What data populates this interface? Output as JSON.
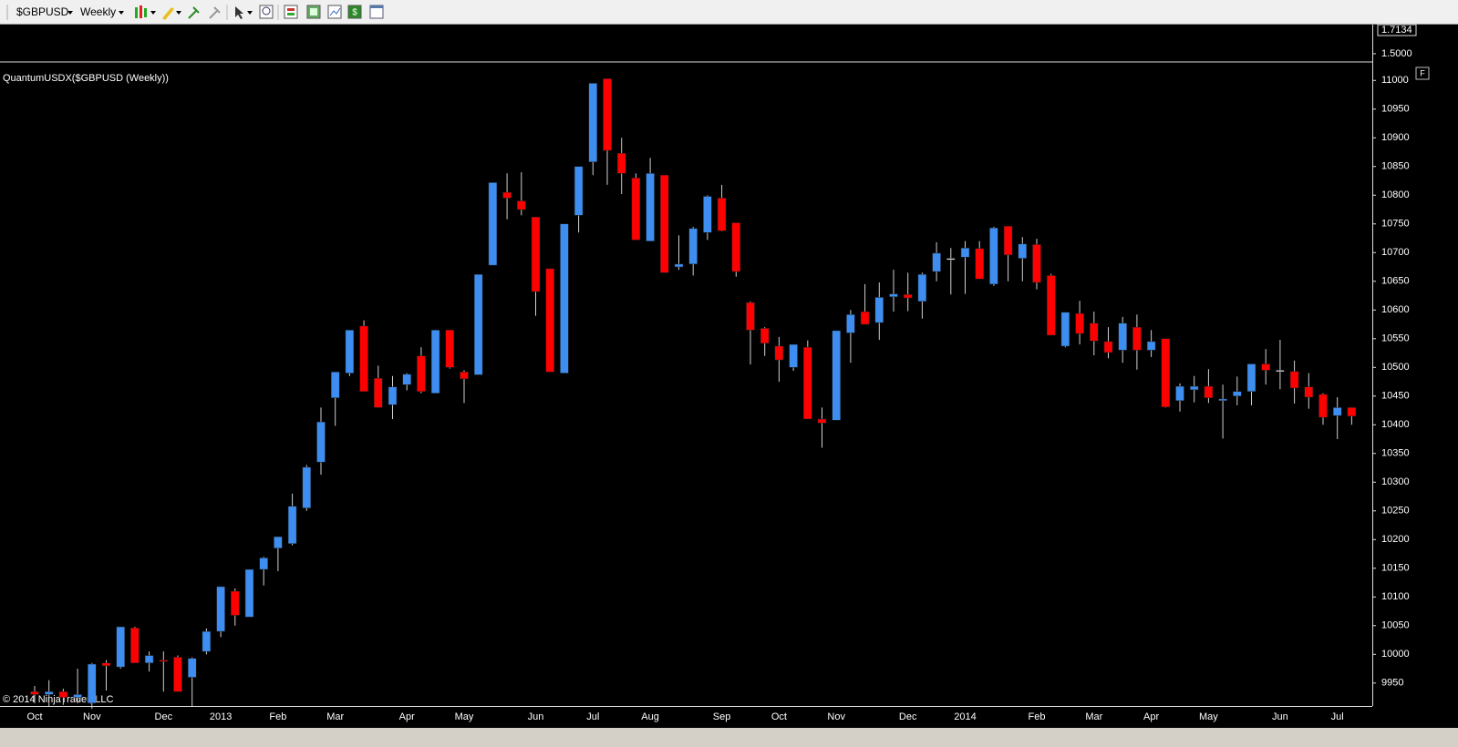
{
  "toolbar": {
    "instrument": "$GBPUSD",
    "interval": "Weekly"
  },
  "upper_pane": {
    "ylim": [
      1.434,
      1.763
    ],
    "yticks": [
      {
        "value": 1.5,
        "label": "1.5000"
      }
    ],
    "last_price": {
      "value": 1.7134,
      "label": "1.7134"
    },
    "button": "F"
  },
  "copyright": "© 2014 NinjaTrader, LLC",
  "chart_data": {
    "type": "candlestick",
    "title": "QuantumUSDX($GBPUSD (Weekly))",
    "categories": [
      "Oct",
      null,
      null,
      null,
      "Nov",
      null,
      null,
      null,
      null,
      "Dec",
      null,
      null,
      null,
      "2013",
      null,
      null,
      null,
      "Feb",
      null,
      null,
      null,
      "Mar",
      null,
      null,
      null,
      null,
      "Apr",
      null,
      null,
      null,
      "May",
      null,
      null,
      null,
      null,
      "Jun",
      null,
      null,
      null,
      "Jul",
      null,
      null,
      null,
      "Aug",
      null,
      null,
      null,
      null,
      "Sep",
      null,
      null,
      null,
      "Oct",
      null,
      null,
      null,
      "Nov",
      null,
      null,
      null,
      null,
      "Dec",
      null,
      null,
      null,
      "2014",
      null,
      null,
      null,
      null,
      "Feb",
      null,
      null,
      null,
      "Mar",
      null,
      null,
      null,
      "Apr",
      null,
      null,
      null,
      "May",
      null,
      null,
      null,
      null,
      "Jun",
      null,
      null,
      null,
      "Jul",
      null
    ],
    "open": [
      9935,
      9930,
      9935,
      9925,
      9915,
      9985,
      9978,
      10046,
      9985,
      9990,
      9995,
      9960,
      10005,
      10040,
      10110,
      10065,
      10148,
      10185,
      10193,
      10255,
      10335,
      10447,
      10490,
      10572,
      10481,
      10435,
      10470,
      10520,
      10455,
      10565,
      10492,
      10487,
      10678,
      10805,
      10790,
      10762,
      10672,
      10490,
      10765,
      10858,
      11003,
      10873,
      10830,
      10720,
      10835,
      10675,
      10680,
      10735,
      10795,
      10752,
      10613,
      10568,
      10537,
      10500,
      10535,
      10410,
      10408,
      10560,
      10597,
      10578,
      10623,
      10627,
      10615,
      10667,
      10690,
      10692,
      10707,
      10645,
      10746,
      10690,
      10714,
      10660,
      10537,
      10594,
      10577,
      10545,
      10530,
      10570,
      10530,
      10550,
      10442,
      10461,
      10467,
      10442,
      10450,
      10458,
      10506,
      10495,
      10493,
      10466,
      10453,
      10416,
      10430
    ],
    "high": [
      9945,
      9955,
      9940,
      9975,
      9985,
      9990,
      10048,
      10048,
      10005,
      10005,
      9998,
      9995,
      10045,
      10118,
      10115,
      10148,
      10170,
      10205,
      10280,
      10330,
      10430,
      10492,
      10565,
      10582,
      10503,
      10485,
      10490,
      10535,
      10565,
      10565,
      10495,
      10662,
      10822,
      10838,
      10840,
      10762,
      10672,
      10750,
      10850,
      10995,
      11003,
      10900,
      10838,
      10865,
      10835,
      10730,
      10745,
      10800,
      10818,
      10752,
      10615,
      10570,
      10553,
      10540,
      10547,
      10430,
      10564,
      10600,
      10645,
      10648,
      10670,
      10665,
      10665,
      10718,
      10708,
      10720,
      10720,
      10745,
      10746,
      10727,
      10724,
      10663,
      10596,
      10616,
      10597,
      10570,
      10588,
      10592,
      10565,
      10550,
      10472,
      10485,
      10497,
      10470,
      10484,
      10506,
      10532,
      10548,
      10512,
      10490,
      10455,
      10448,
      10430
    ],
    "low": [
      9915,
      9910,
      9912,
      9915,
      9905,
      9937,
      9975,
      9985,
      9970,
      9935,
      9935,
      9910,
      10000,
      10030,
      10050,
      10065,
      10120,
      10145,
      10190,
      10250,
      10313,
      10398,
      10485,
      10458,
      10430,
      10410,
      10460,
      10455,
      10455,
      10498,
      10438,
      10487,
      10678,
      10758,
      10765,
      10590,
      10492,
      10490,
      10735,
      10835,
      10818,
      10802,
      10722,
      10720,
      10665,
      10670,
      10660,
      10722,
      10737,
      10658,
      10505,
      10520,
      10475,
      10494,
      10410,
      10360,
      10408,
      10508,
      10575,
      10548,
      10597,
      10598,
      10585,
      10650,
      10627,
      10628,
      10654,
      10642,
      10650,
      10650,
      10636,
      10556,
      10535,
      10540,
      10521,
      10516,
      10508,
      10496,
      10518,
      10430,
      10423,
      10439,
      10438,
      10376,
      10434,
      10434,
      10470,
      10462,
      10437,
      10428,
      10400,
      10375,
      10400
    ],
    "close": [
      9930,
      9935,
      9925,
      9930,
      9983,
      9980,
      10048,
      9985,
      9998,
      9988,
      9935,
      9993,
      10040,
      10118,
      10068,
      10148,
      10168,
      10205,
      10258,
      10326,
      10405,
      10492,
      10565,
      10458,
      10430,
      10466,
      10488,
      10458,
      10565,
      10500,
      10480,
      10662,
      10822,
      10795,
      10775,
      10632,
      10492,
      10750,
      10850,
      10995,
      10878,
      10838,
      10722,
      10838,
      10665,
      10680,
      10742,
      10798,
      10738,
      10667,
      10565,
      10542,
      10513,
      10540,
      10410,
      10403,
      10564,
      10592,
      10575,
      10622,
      10628,
      10621,
      10662,
      10699,
      10690,
      10708,
      10654,
      10743,
      10696,
      10715,
      10648,
      10556,
      10596,
      10559,
      10546,
      10526,
      10577,
      10530,
      10545,
      10431,
      10467,
      10467,
      10447,
      10445,
      10458,
      10506,
      10495,
      10495,
      10464,
      10448,
      10413,
      10430,
      10415
    ],
    "up_color": "#3d8ef0",
    "down_color": "#ff0000",
    "flat_color": "#ffffff",
    "ylim": [
      9910,
      11029
    ],
    "yticks": [
      9950,
      10000,
      10050,
      10100,
      10150,
      10200,
      10250,
      10300,
      10350,
      10400,
      10450,
      10500,
      10550,
      10600,
      10650,
      10700,
      10750,
      10800,
      10850,
      10900,
      10950,
      11000
    ],
    "grid": false
  }
}
